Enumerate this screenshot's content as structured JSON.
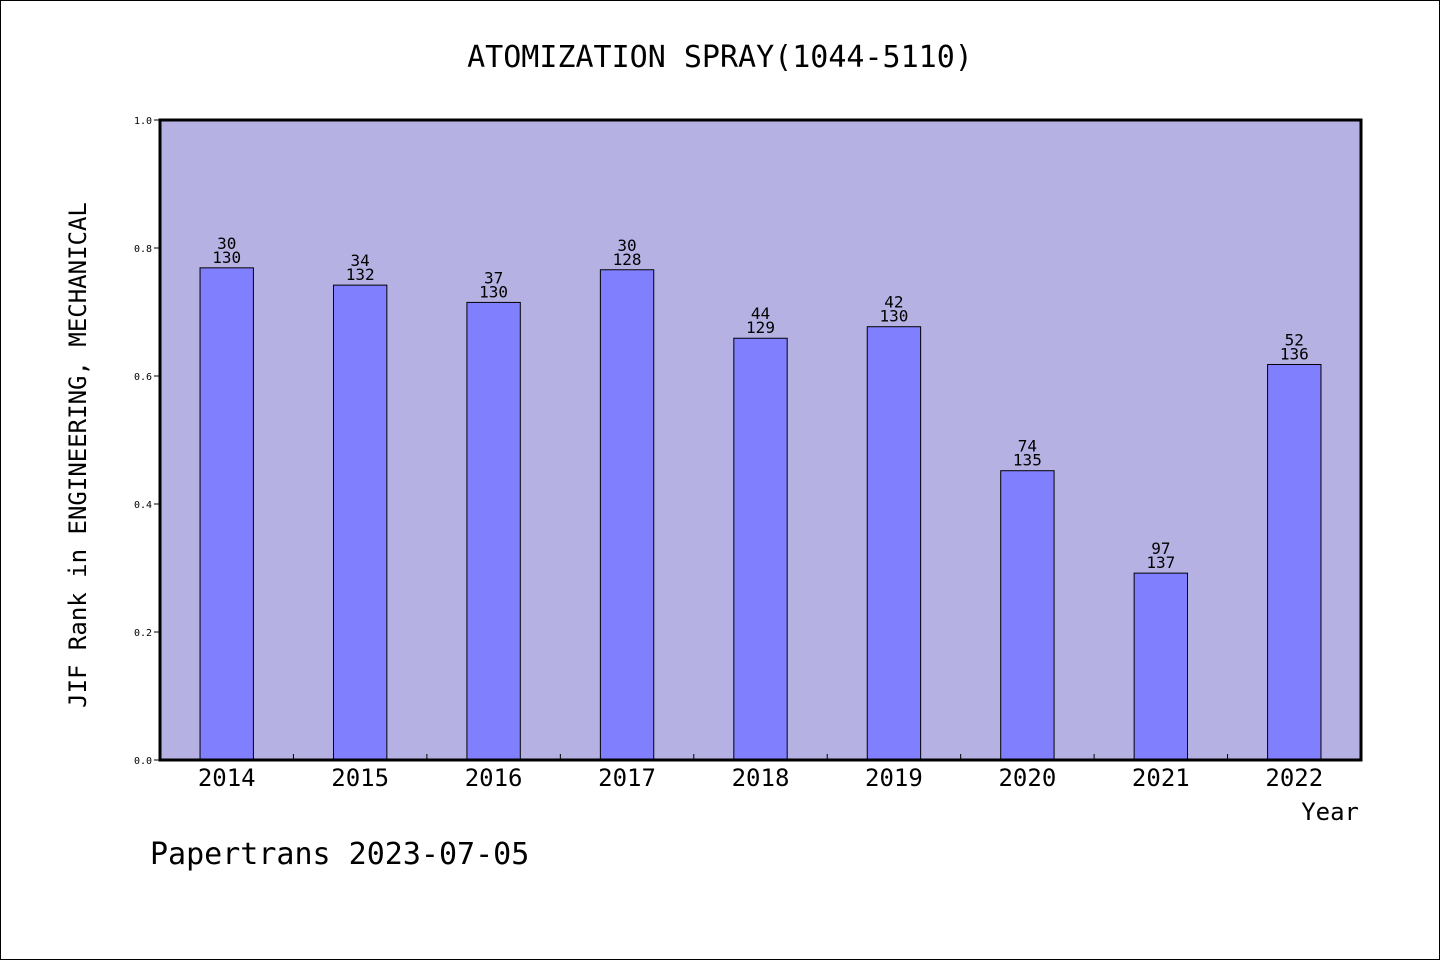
{
  "chart_data": {
    "type": "bar",
    "title": "ATOMIZATION SPRAY(1044-5110)",
    "xlabel": "Year",
    "ylabel": "JIF Rank in ENGINEERING, MECHANICAL",
    "ylim": [
      0,
      1.0
    ],
    "yticks": [
      "0.0",
      "0.2",
      "0.4",
      "0.6",
      "0.8",
      "1.0"
    ],
    "grid": false,
    "categories": [
      "2014",
      "2015",
      "2016",
      "2017",
      "2018",
      "2019",
      "2020",
      "2021",
      "2022"
    ],
    "values": [
      0.769,
      0.742,
      0.715,
      0.766,
      0.659,
      0.677,
      0.452,
      0.292,
      0.618
    ],
    "rank_labels": [
      "30",
      "34",
      "37",
      "30",
      "44",
      "42",
      "74",
      "97",
      "52"
    ],
    "total_labels": [
      "130",
      "132",
      "130",
      "128",
      "129",
      "130",
      "135",
      "137",
      "136"
    ],
    "colors": {
      "plot_background": "#b6b1e3",
      "bar_fill": "#8080ff",
      "bar_stroke": "#000000"
    }
  },
  "footer": {
    "source": "Papertrans 2023-07-05"
  }
}
